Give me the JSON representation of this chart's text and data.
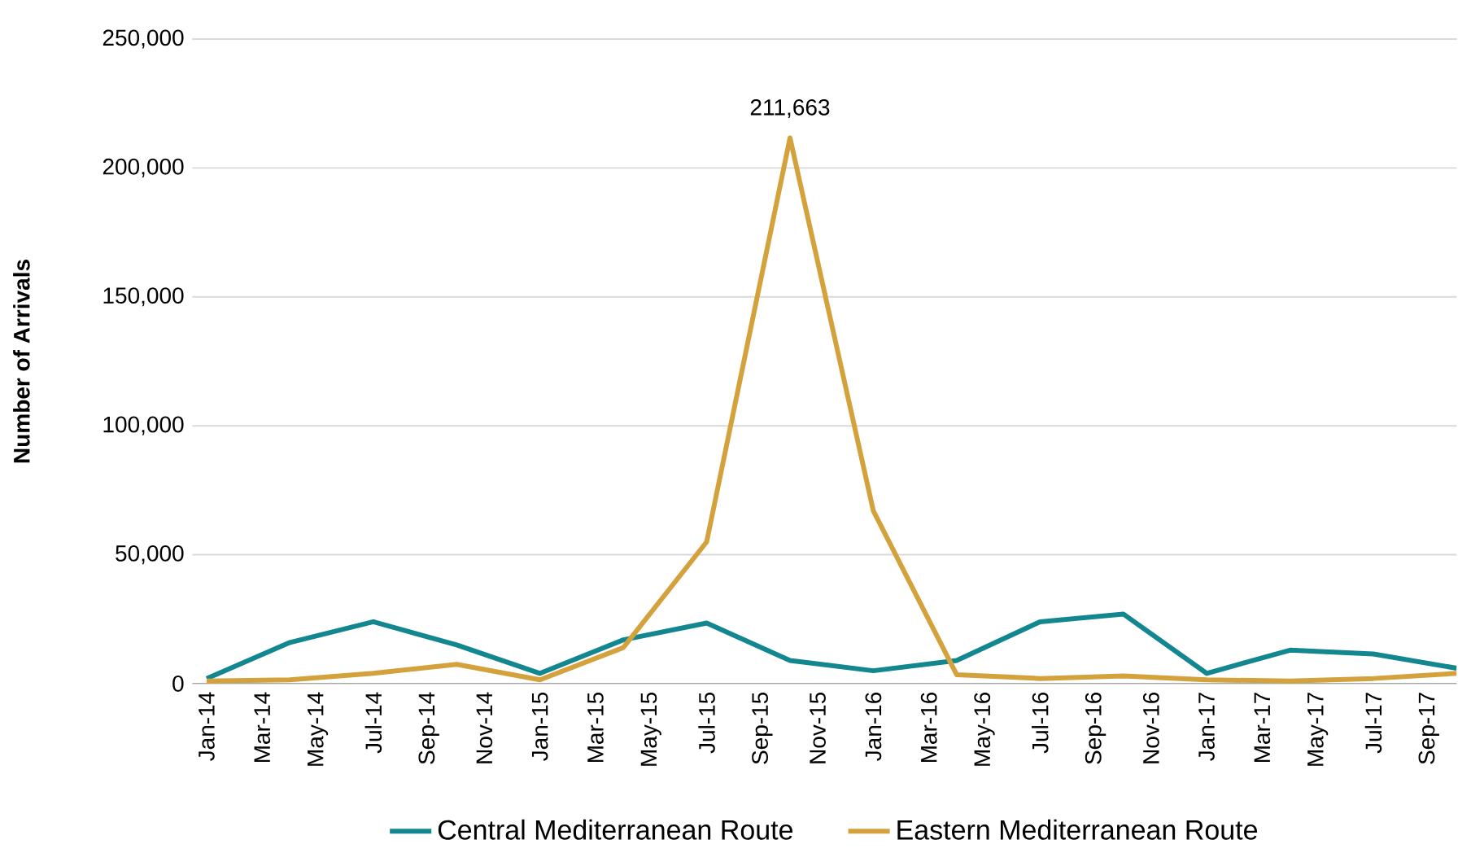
{
  "chart_data": {
    "type": "line",
    "ylabel": "Number of Arrivals",
    "x": [
      "2014-01",
      "2014-04",
      "2014-07",
      "2014-10",
      "2015-01",
      "2015-04",
      "2015-07",
      "2015-10",
      "2016-01",
      "2016-04",
      "2016-07",
      "2016-10",
      "2017-01",
      "2017-04",
      "2017-07",
      "2017-10"
    ],
    "series": [
      {
        "name": "Central Mediterranean Route",
        "color": "#13878f",
        "values": [
          2000,
          16000,
          24000,
          15000,
          4000,
          17000,
          23500,
          9000,
          5000,
          9000,
          24000,
          27000,
          4000,
          13000,
          11500,
          6000
        ]
      },
      {
        "name": "Eastern Mediterranean Route",
        "color": "#d4a23c",
        "values": [
          1000,
          1500,
          4000,
          7500,
          1500,
          14000,
          55000,
          211663,
          67000,
          3500,
          2000,
          3000,
          1500,
          1000,
          2000,
          4000
        ],
        "value_labels": [
          null,
          null,
          null,
          null,
          null,
          null,
          null,
          "211,663",
          null,
          null,
          null,
          null,
          null,
          null,
          null,
          null
        ]
      }
    ],
    "ylim": [
      0,
      250000
    ],
    "yticks": [
      0,
      {
        "value": 50000,
        "label": "50,000"
      },
      {
        "value": 100000,
        "label": "100,000"
      },
      {
        "value": 150000,
        "label": "150,000"
      },
      {
        "value": 200000,
        "label": "200,000"
      },
      {
        "value": 250000,
        "label": "250,000"
      }
    ],
    "xlim": [
      "2013-12-16",
      "2017-10"
    ],
    "xticks": [
      {
        "value": "2014-01",
        "label": "Jan-14"
      },
      {
        "value": "2014-03",
        "label": "Mar-14"
      },
      {
        "value": "2014-05",
        "label": "May-14"
      },
      {
        "value": "2014-07",
        "label": "Jul-14"
      },
      {
        "value": "2014-09",
        "label": "Sep-14"
      },
      {
        "value": "2014-11",
        "label": "Nov-14"
      },
      {
        "value": "2015-01",
        "label": "Jan-15"
      },
      {
        "value": "2015-03",
        "label": "Mar-15"
      },
      {
        "value": "2015-05",
        "label": "May-15"
      },
      {
        "value": "2015-07",
        "label": "Jul-15"
      },
      {
        "value": "2015-09",
        "label": "Sep-15"
      },
      {
        "value": "2015-11",
        "label": "Nov-15"
      },
      {
        "value": "2016-01",
        "label": "Jan-16"
      },
      {
        "value": "2016-03",
        "label": "Mar-16"
      },
      {
        "value": "2016-05",
        "label": "May-16"
      },
      {
        "value": "2016-07",
        "label": "Jul-16"
      },
      {
        "value": "2016-09",
        "label": "Sep-16"
      },
      {
        "value": "2016-11",
        "label": "Nov-16"
      },
      {
        "value": "2017-01",
        "label": "Jan-17"
      },
      {
        "value": "2017-03",
        "label": "Mar-17"
      },
      {
        "value": "2017-05",
        "label": "May-17"
      },
      {
        "value": "2017-07",
        "label": "Jul-17"
      },
      {
        "value": "2017-09",
        "label": "Sep-17"
      }
    ],
    "grid": "y",
    "legend": "bottom",
    "marker": "none",
    "line_style": "solid"
  }
}
